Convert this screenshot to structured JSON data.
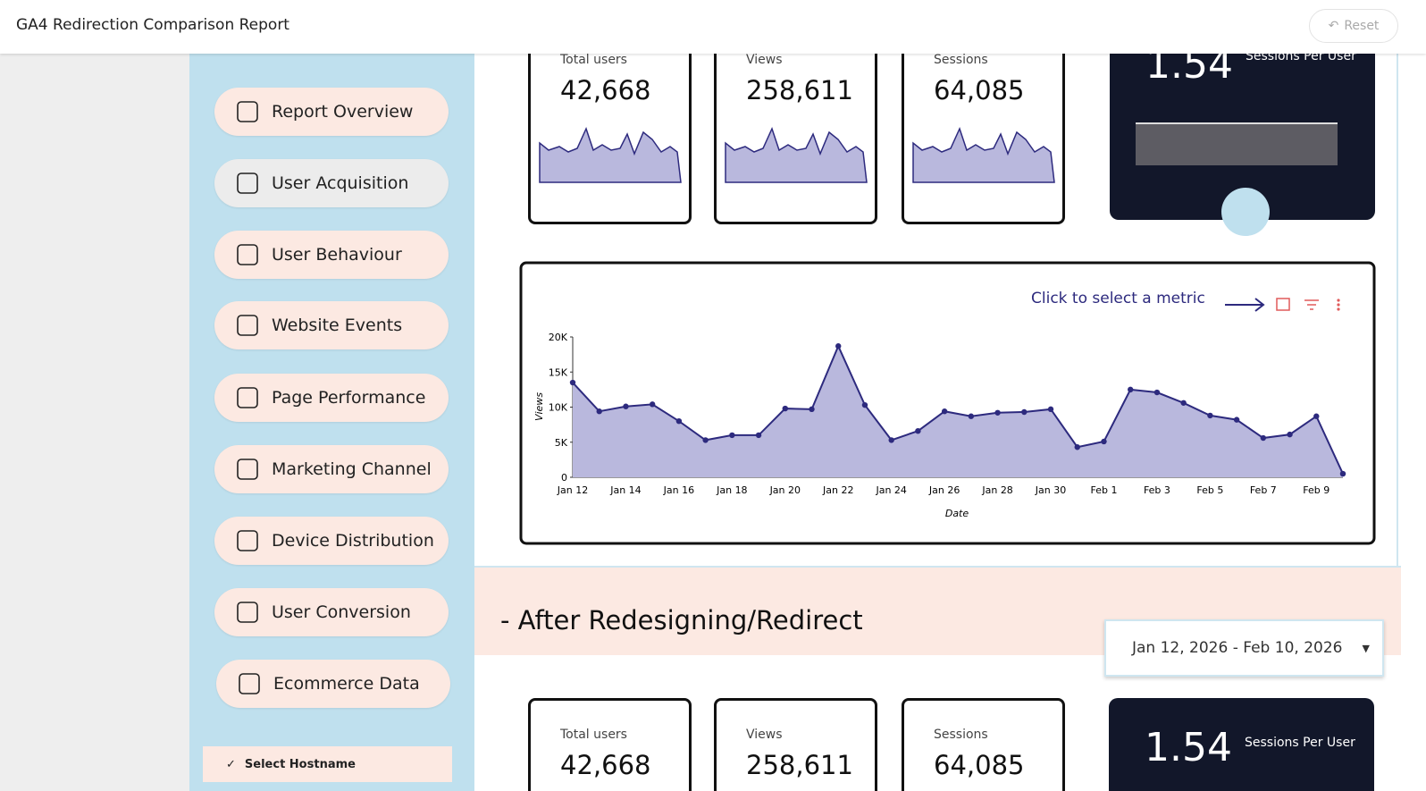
{
  "header": {
    "title": "GA4 Redirection Comparison Report",
    "reset": "Reset"
  },
  "nav": [
    "Report Overview",
    "User Acquisition",
    "User Behaviour",
    "Website Events",
    "Page Performance",
    "Marketing Channel",
    "Device Distribution",
    "User Conversion",
    "Ecommerce Data"
  ],
  "filter": {
    "label": "Select Hostname"
  },
  "top_kpis": [
    {
      "label": "Total users",
      "value": "42,668"
    },
    {
      "label": "Views",
      "value": "258,611"
    },
    {
      "label": "Sessions",
      "value": "64,085"
    }
  ],
  "top_ratio": {
    "value": "1.54",
    "label": "Sessions Per User"
  },
  "chart_data": {
    "type": "area",
    "annotation": "Click to select a metric",
    "x_label": "Date",
    "y_label": "Views",
    "categories": [
      "Jan 12",
      null,
      "Jan 14",
      null,
      "Jan 16",
      null,
      "Jan 18",
      null,
      "Jan 20",
      null,
      "Jan 22",
      null,
      "Jan 24",
      null,
      "Jan 26",
      null,
      "Jan 28",
      null,
      "Jan 30",
      null,
      "Feb 1",
      null,
      "Feb 3",
      null,
      "Feb 5",
      null,
      "Feb 7",
      null,
      "Feb 9",
      null
    ],
    "values": [
      13500,
      9400,
      10100,
      10400,
      8000,
      5300,
      6000,
      6000,
      9800,
      9700,
      18700,
      10300,
      5300,
      6600,
      9400,
      8700,
      9200,
      9300,
      9700,
      4300,
      5100,
      12500,
      12100,
      10600,
      8800,
      8200,
      5600,
      6100,
      8700,
      500
    ],
    "color": "#2d2a7e",
    "fill": "#b9b8dd",
    "ylim": [
      0,
      20000
    ],
    "yticks": [
      0,
      {
        "value": 5000,
        "label": "5K"
      },
      {
        "value": 10000,
        "label": "10K"
      },
      {
        "value": 15000,
        "label": "15K"
      },
      {
        "value": 20000,
        "label": "20K"
      }
    ]
  },
  "section": {
    "title": "- After Redesigning/Redirect",
    "date_range": "Jan 12, 2026 - Feb 10, 2026"
  },
  "bottom_kpis": [
    {
      "label": "Total users",
      "value": "42,668"
    },
    {
      "label": "Views",
      "value": "258,611"
    },
    {
      "label": "Sessions",
      "value": "64,085"
    }
  ],
  "bottom_ratio": {
    "value": "1.54",
    "label": "Sessions Per User"
  }
}
